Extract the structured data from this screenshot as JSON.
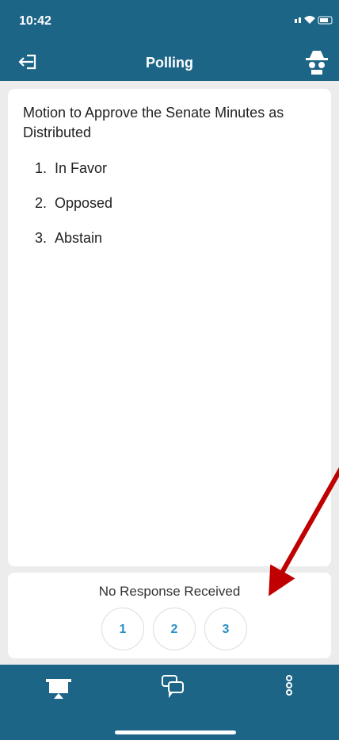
{
  "status": {
    "time": "10:42"
  },
  "header": {
    "title": "Polling"
  },
  "poll": {
    "question": "Motion to Approve the Senate Minutes as Distributed",
    "options": [
      {
        "number": "1.",
        "text": "In Favor"
      },
      {
        "number": "2.",
        "text": "Opposed"
      },
      {
        "number": "3.",
        "text": "Abstain"
      }
    ]
  },
  "response": {
    "status": "No Response Received",
    "buttons": [
      "1",
      "2",
      "3"
    ]
  }
}
